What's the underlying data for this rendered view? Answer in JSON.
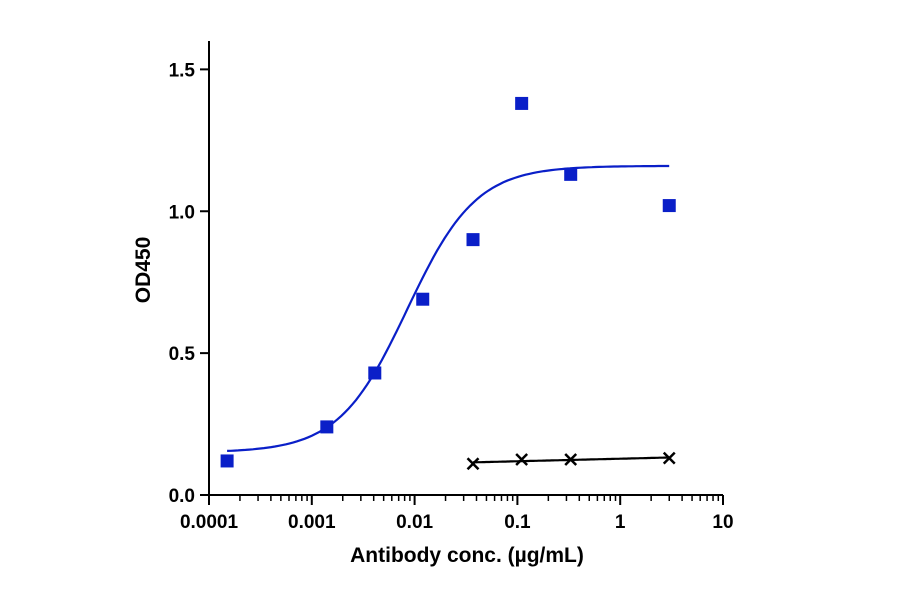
{
  "chart_data": {
    "type": "scatter",
    "title": "",
    "xlabel": "Antibody conc. (µg/mL)",
    "ylabel": "OD450",
    "x_scale": "log",
    "xlim": [
      0.0001,
      10
    ],
    "ylim": [
      0,
      1.6
    ],
    "x_ticks": [
      {
        "value": 0.0001,
        "label": "0.0001"
      },
      {
        "value": 0.001,
        "label": "0.001"
      },
      {
        "value": 0.01,
        "label": "0.01"
      },
      {
        "value": 0.1,
        "label": "0.1"
      },
      {
        "value": 1,
        "label": "1"
      },
      {
        "value": 10,
        "label": "10"
      }
    ],
    "y_ticks": [
      {
        "value": 0,
        "label": "0.0"
      },
      {
        "value": 0.5,
        "label": "0.5"
      },
      {
        "value": 1.0,
        "label": "1.0"
      },
      {
        "value": 1.5,
        "label": "1.5"
      }
    ],
    "grid": false,
    "legend": "none",
    "series": [
      {
        "marker": "square",
        "color": "#0a1fc8",
        "x": [
          0.00015,
          0.0014,
          0.0041,
          0.012,
          0.037,
          0.11,
          0.33,
          3.0
        ],
        "y": [
          0.12,
          0.24,
          0.43,
          0.69,
          0.9,
          1.38,
          1.13,
          1.02
        ],
        "fit": {
          "model": "4PL",
          "bottom": 0.15,
          "top": 1.16,
          "ec50": 0.0085,
          "hill": 1.3,
          "x_range": [
            0.00015,
            3.0
          ]
        }
      },
      {
        "marker": "x",
        "color": "#000000",
        "x": [
          0.037,
          0.11,
          0.33,
          3.0
        ],
        "y": [
          0.11,
          0.125,
          0.125,
          0.13
        ],
        "fit": {
          "model": "log-linear",
          "x_range": [
            0.037,
            3.0
          ]
        }
      }
    ]
  }
}
